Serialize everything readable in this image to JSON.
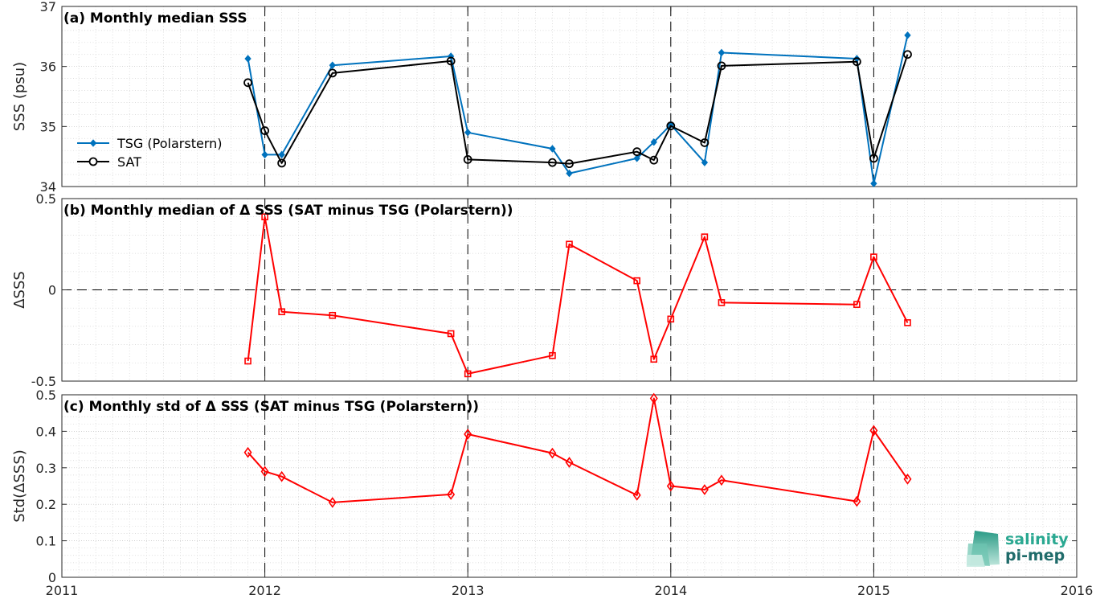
{
  "chart_data": [
    {
      "type": "line",
      "title": "(a) Monthly median SSS",
      "xlabel": "",
      "ylabel": "SSS (psu)",
      "xlim": [
        2011,
        2016
      ],
      "ylim": [
        34,
        37
      ],
      "x_ticks": [
        "2011",
        "2012",
        "2013",
        "2014",
        "2015",
        "2016"
      ],
      "y_ticks": [
        "34",
        "35",
        "36",
        "37"
      ],
      "grid": true,
      "legend_position": "lower-left",
      "series": [
        {
          "name": "TSG (Polarstern)",
          "color": "#0072BD",
          "marker": "diamond-filled",
          "x": [
            "2011-11",
            "2011-12",
            "2012-01",
            "2012-04",
            "2012-11",
            "2012-12",
            "2013-05",
            "2013-06",
            "2013-10",
            "2013-11",
            "2013-12",
            "2014-02",
            "2014-03",
            "2014-11",
            "2014-12",
            "2015-02"
          ],
          "values": [
            36.13,
            34.53,
            34.53,
            36.02,
            36.17,
            34.9,
            34.63,
            34.22,
            34.47,
            34.74,
            35.03,
            34.4,
            36.23,
            36.13,
            34.05,
            36.52
          ]
        },
        {
          "name": "SAT",
          "color": "#000000",
          "marker": "circle-open",
          "x": [
            "2011-11",
            "2011-12",
            "2012-01",
            "2012-04",
            "2012-11",
            "2012-12",
            "2013-05",
            "2013-06",
            "2013-10",
            "2013-11",
            "2013-12",
            "2014-02",
            "2014-03",
            "2014-11",
            "2014-12",
            "2015-02"
          ],
          "values": [
            35.73,
            34.93,
            34.39,
            35.89,
            36.09,
            34.45,
            34.4,
            34.38,
            34.58,
            34.44,
            35.01,
            34.73,
            36.01,
            36.08,
            34.47,
            36.2
          ]
        }
      ]
    },
    {
      "type": "line",
      "title": "(b) Monthly median of Δ SSS (SAT minus TSG (Polarstern))",
      "xlabel": "",
      "ylabel": "ΔSSS",
      "xlim": [
        2011,
        2016
      ],
      "ylim": [
        -0.5,
        0.5
      ],
      "x_ticks": [
        "2011",
        "2012",
        "2013",
        "2014",
        "2015",
        "2016"
      ],
      "y_ticks": [
        "-0.5",
        "0",
        "0.5"
      ],
      "grid": true,
      "series": [
        {
          "color": "#FF0000",
          "marker": "square-open",
          "x": [
            "2011-11",
            "2011-12",
            "2012-01",
            "2012-04",
            "2012-11",
            "2012-12",
            "2013-05",
            "2013-06",
            "2013-10",
            "2013-11",
            "2013-12",
            "2014-02",
            "2014-03",
            "2014-11",
            "2014-12",
            "2015-02"
          ],
          "values": [
            -0.39,
            0.4,
            -0.12,
            -0.14,
            -0.24,
            -0.46,
            -0.36,
            0.25,
            0.05,
            -0.38,
            -0.16,
            0.29,
            -0.07,
            -0.08,
            0.18,
            -0.18
          ]
        }
      ]
    },
    {
      "type": "line",
      "title": "(c) Monthly std of Δ SSS (SAT minus TSG (Polarstern))",
      "xlabel": "",
      "ylabel": "Std(ΔSSS)",
      "xlim": [
        2011,
        2016
      ],
      "ylim": [
        0,
        0.5
      ],
      "x_ticks": [
        "2011",
        "2012",
        "2013",
        "2014",
        "2015",
        "2016"
      ],
      "y_ticks": [
        "0",
        "0.1",
        "0.2",
        "0.3",
        "0.4",
        "0.5"
      ],
      "grid": true,
      "series": [
        {
          "color": "#FF0000",
          "marker": "diamond-open",
          "x": [
            "2011-11",
            "2011-12",
            "2012-01",
            "2012-04",
            "2012-11",
            "2012-12",
            "2013-05",
            "2013-06",
            "2013-10",
            "2013-11",
            "2013-12",
            "2014-02",
            "2014-03",
            "2014-11",
            "2014-12",
            "2015-02"
          ],
          "values": [
            0.342,
            0.29,
            0.276,
            0.205,
            0.227,
            0.392,
            0.34,
            0.315,
            0.225,
            0.49,
            0.25,
            0.24,
            0.266,
            0.208,
            0.402,
            0.269
          ]
        }
      ]
    }
  ],
  "logo": {
    "line1": "salinity",
    "line2": "pi-mep"
  }
}
